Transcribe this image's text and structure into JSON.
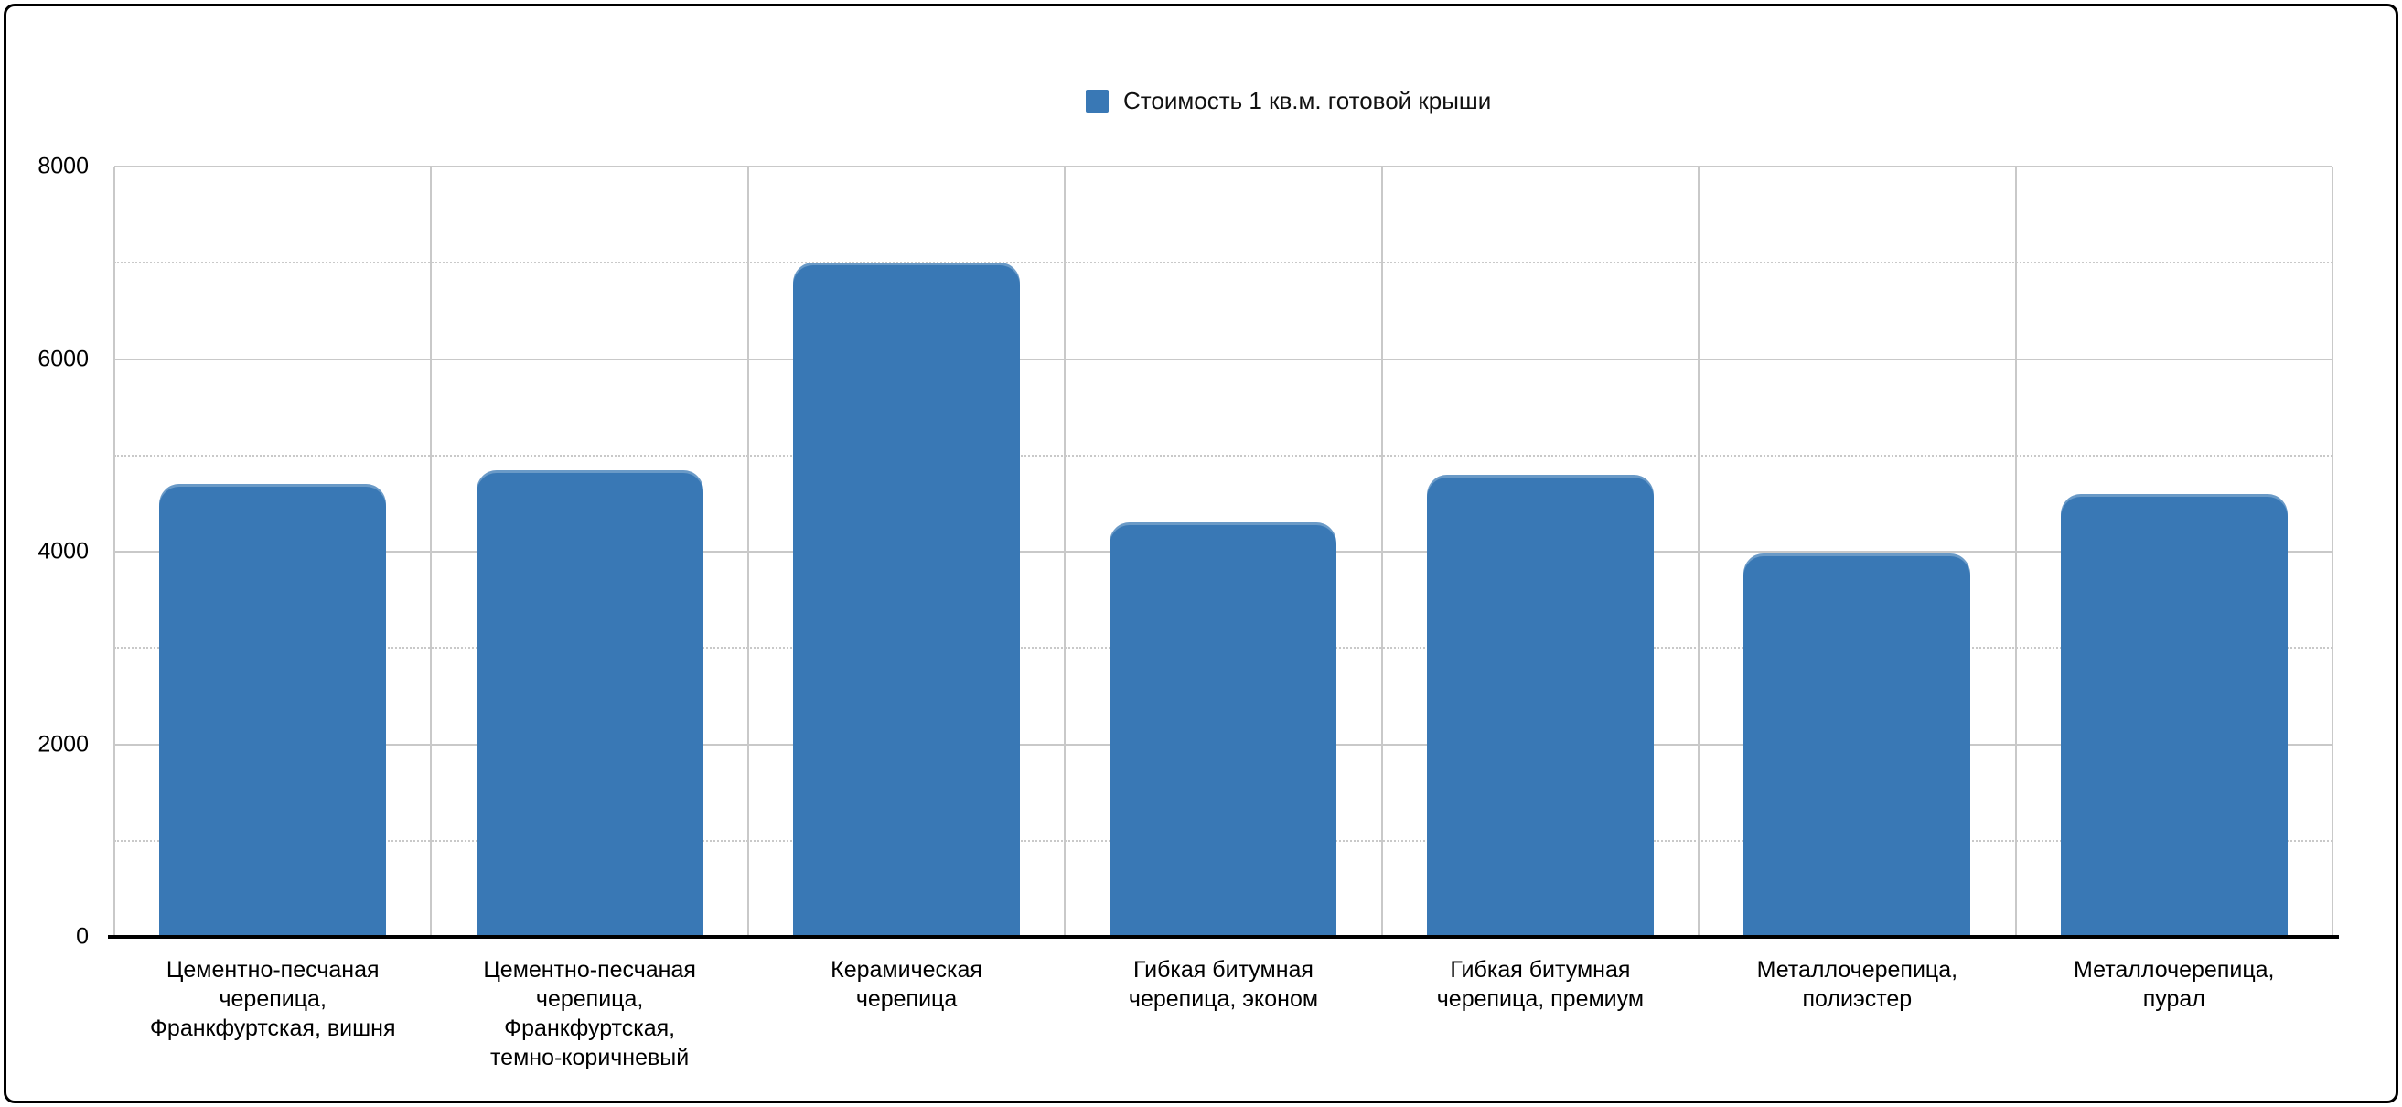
{
  "chart_data": {
    "type": "bar",
    "legend_label": "Стоимость 1 кв.м. готовой крыши",
    "categories": [
      "Цементно-песчаная\nчерепица,\nФранкфуртская, вишня",
      "Цементно-песчаная\nчерепица,\nФранкфуртская,\nтемно-коричневый",
      "Керамическая\nчерепица",
      "Гибкая битумная\nчерепица, эконом",
      "Гибкая битумная\nчерепица, премиум",
      "Металлочерепица,\nполиэстер",
      "Металлочерепица,\nпурал"
    ],
    "values": [
      4700,
      4850,
      7000,
      4300,
      4800,
      3980,
      4600
    ],
    "ylim": [
      0,
      8000
    ],
    "y_major_ticks": [
      0,
      2000,
      4000,
      6000,
      8000
    ],
    "y_minor_gridlines": [
      1000,
      3000,
      5000,
      7000
    ],
    "bar_color": "#3978b5",
    "gridline_color": "#c9c9c9",
    "legend_position": "top-center",
    "grid": true,
    "title": "",
    "xlabel": "",
    "ylabel": ""
  }
}
